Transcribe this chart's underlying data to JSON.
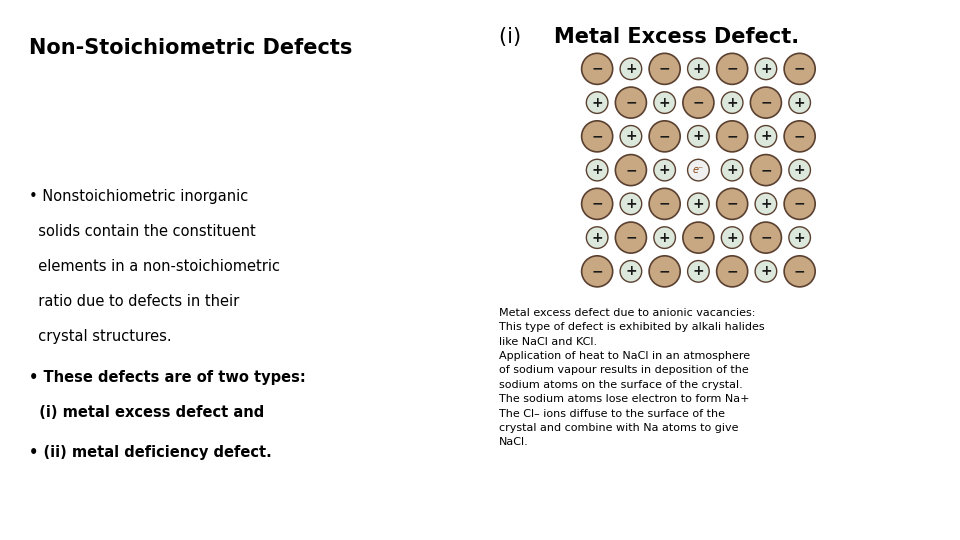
{
  "title_left": "Non-Stoichiometric Defects",
  "title_right_prefix": "(i) ",
  "title_right_main": "Metal Excess Defect.",
  "bullet1_line1": "• Nonstoichiometric inorganic",
  "bullet1_line2": "  solids contain the constituent",
  "bullet1_line3": "  elements in a non-stoichiometric",
  "bullet1_line4": "  ratio due to defects in their",
  "bullet1_line5": "  crystal structures.",
  "bullet2_line1": "• These defects are of two types:",
  "bullet2_line2": "  (i) metal excess defect and",
  "bullet3_line1": "• (ii) metal deficiency defect.",
  "desc_text": "Metal excess defect due to anionic vacancies:\nThis type of defect is exhibited by alkali halides\nlike NaCl and KCl.\nApplication of heat to NaCl in an atmosphere\nof sodium vapour results in deposition of the\nsodium atoms on the surface of the crystal.\nThe sodium atoms lose electron to form Na+\nThe Cl– ions diffuse to the surface of the\ncrystal and combine with Na atoms to give\nNaCl.",
  "bg_color": "#ffffff",
  "text_color": "#000000",
  "large_ball_color": "#c8a882",
  "large_ball_edge": "#5a4030",
  "small_ball_color": "#dde8dd",
  "small_ball_edge": "#5a4030",
  "grid_rows": 7,
  "grid_cols": 7,
  "vacancy_row": 3,
  "vacancy_col": 3,
  "electron_text": "e⁻",
  "electron_color": "#8B4513"
}
